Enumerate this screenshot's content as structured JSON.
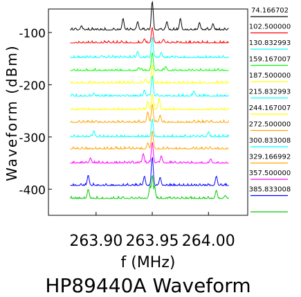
{
  "chart_data": {
    "type": "line",
    "title": "HP89440A Waveform",
    "xlabel": "f (MHz)",
    "ylabel": "Waveform (dBm)",
    "xlim": [
      263.865,
      264.03
    ],
    "ylim": [
      -450,
      -55
    ],
    "xticks": [
      263.9,
      263.95,
      264.0
    ],
    "xtick_labels": [
      "263.90",
      "263.95",
      "264.00"
    ],
    "yticks": [
      -100,
      -200,
      -300,
      -400
    ],
    "ytick_labels": [
      "-100",
      "-200",
      "-300",
      "-400"
    ],
    "grid": false,
    "legend_position": "right, outside plot",
    "series": [
      {
        "name": "74.166702",
        "color": "#000000",
        "baseline": -95,
        "peaks": [
          [
            263.95,
            55
          ],
          [
            263.924,
            22
          ],
          [
            263.975,
            22
          ],
          [
            263.937,
            16
          ],
          [
            263.963,
            16
          ],
          [
            263.992,
            14
          ],
          [
            264.004,
            12
          ],
          [
            263.887,
            8
          ]
        ]
      },
      {
        "name": "102.500000",
        "color": "#ff0000",
        "baseline": -120,
        "peaks": [
          [
            263.95,
            30
          ],
          [
            263.943,
            8
          ],
          [
            263.96,
            7
          ]
        ]
      },
      {
        "name": "130.832993",
        "color": "#00ffff",
        "baseline": -148,
        "peaks": [
          [
            263.95,
            40
          ],
          [
            263.937,
            12
          ],
          [
            263.958,
            10
          ],
          [
            263.905,
            4
          ]
        ]
      },
      {
        "name": "159.167007",
        "color": "#00ff00",
        "baseline": -173,
        "peaks": [
          [
            263.95,
            35
          ],
          [
            263.962,
            8
          ],
          [
            263.938,
            6
          ]
        ]
      },
      {
        "name": "187.500000",
        "color": "#ffff00",
        "baseline": -197,
        "peaks": [
          [
            263.95,
            35
          ],
          [
            263.944,
            8
          ]
        ]
      },
      {
        "name": "215.832993",
        "color": "#00ffff",
        "baseline": -222,
        "peaks": [
          [
            263.95,
            40
          ],
          [
            263.943,
            12
          ],
          [
            263.987,
            10
          ],
          [
            263.898,
            6
          ]
        ]
      },
      {
        "name": "244.167007",
        "color": "#ffff00",
        "baseline": -248,
        "peaks": [
          [
            263.95,
            30
          ],
          [
            263.956,
            22
          ],
          [
            263.946,
            16
          ]
        ]
      },
      {
        "name": "272.500000",
        "color": "#ffa500",
        "baseline": -272,
        "peaks": [
          [
            263.95,
            35
          ],
          [
            263.946,
            20
          ],
          [
            263.957,
            14
          ]
        ]
      },
      {
        "name": "300.833008",
        "color": "#00ffff",
        "baseline": -300,
        "peaks": [
          [
            263.95,
            35
          ],
          [
            263.898,
            12
          ],
          [
            264.0,
            10
          ]
        ]
      },
      {
        "name": "329.166992",
        "color": "#ffa500",
        "baseline": -323,
        "peaks": [
          [
            263.95,
            35
          ],
          [
            263.946,
            12
          ]
        ]
      },
      {
        "name": "357.500000",
        "color": "#ff00ff",
        "baseline": -350,
        "peaks": [
          [
            263.95,
            40
          ],
          [
            263.942,
            18
          ],
          [
            263.958,
            14
          ],
          [
            263.895,
            10
          ],
          [
            264.002,
            8
          ]
        ]
      },
      {
        "name": "385.833008",
        "color": "#0000ff",
        "baseline": -393,
        "peaks": [
          [
            263.95,
            55
          ],
          [
            263.943,
            18
          ],
          [
            263.957,
            16
          ],
          [
            263.893,
            20
          ],
          [
            264.007,
            18
          ]
        ]
      },
      {
        "name": "",
        "color": "#00cc00",
        "baseline": -418,
        "peaks": [
          [
            263.95,
            45
          ],
          [
            263.948,
            25
          ],
          [
            263.952,
            25
          ],
          [
            263.893,
            18
          ],
          [
            264.007,
            16
          ],
          [
            264.015,
            6
          ]
        ]
      }
    ]
  }
}
